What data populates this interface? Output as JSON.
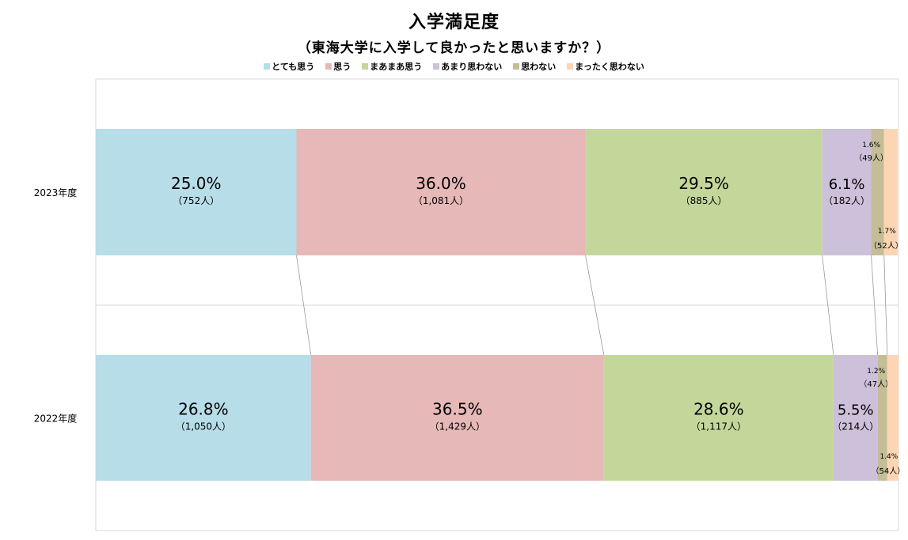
{
  "chart_data": {
    "type": "bar",
    "stacked": "100%",
    "orientation": "horizontal",
    "title": "入学満足度",
    "subtitle": "（東海大学に入学して良かったと思いますか？）",
    "categories": [
      "2023年度",
      "2022年度"
    ],
    "series": [
      {
        "name": "とても思う",
        "color": "#b7dde8",
        "values": [
          25.0,
          26.8
        ],
        "value_labels": [
          "25.0%",
          "26.8%"
        ],
        "count_labels": [
          "（752人）",
          "（1,050人）"
        ]
      },
      {
        "name": "思う",
        "color": "#e6b8b7",
        "values": [
          36.0,
          36.5
        ],
        "value_labels": [
          "36.0%",
          "36.5%"
        ],
        "count_labels": [
          "（1,081人）",
          "（1,429人）"
        ]
      },
      {
        "name": "まあまあ思う",
        "color": "#c4d79b",
        "values": [
          29.5,
          28.6
        ],
        "value_labels": [
          "29.5%",
          "28.6%"
        ],
        "count_labels": [
          "（885人）",
          "（1,117人）"
        ]
      },
      {
        "name": "あまり思わない",
        "color": "#ccc0da",
        "values": [
          6.1,
          5.5
        ],
        "value_labels": [
          "6.1%",
          "5.5%"
        ],
        "count_labels": [
          "（182人）",
          "（214人）"
        ]
      },
      {
        "name": "思わない",
        "color": "#c4bd97",
        "values": [
          1.6,
          1.2
        ],
        "value_labels": [
          "1.6%",
          "1.2%"
        ],
        "count_labels": [
          "（49人）",
          "（47人）"
        ]
      },
      {
        "name": "まったく思わない",
        "color": "#fcd5b4",
        "values": [
          1.7,
          1.4
        ],
        "value_labels": [
          "1.7%",
          "1.4%"
        ],
        "count_labels": [
          "（52人）",
          "（54人）"
        ]
      }
    ],
    "xlim": [
      0,
      100
    ],
    "legend": "top"
  }
}
